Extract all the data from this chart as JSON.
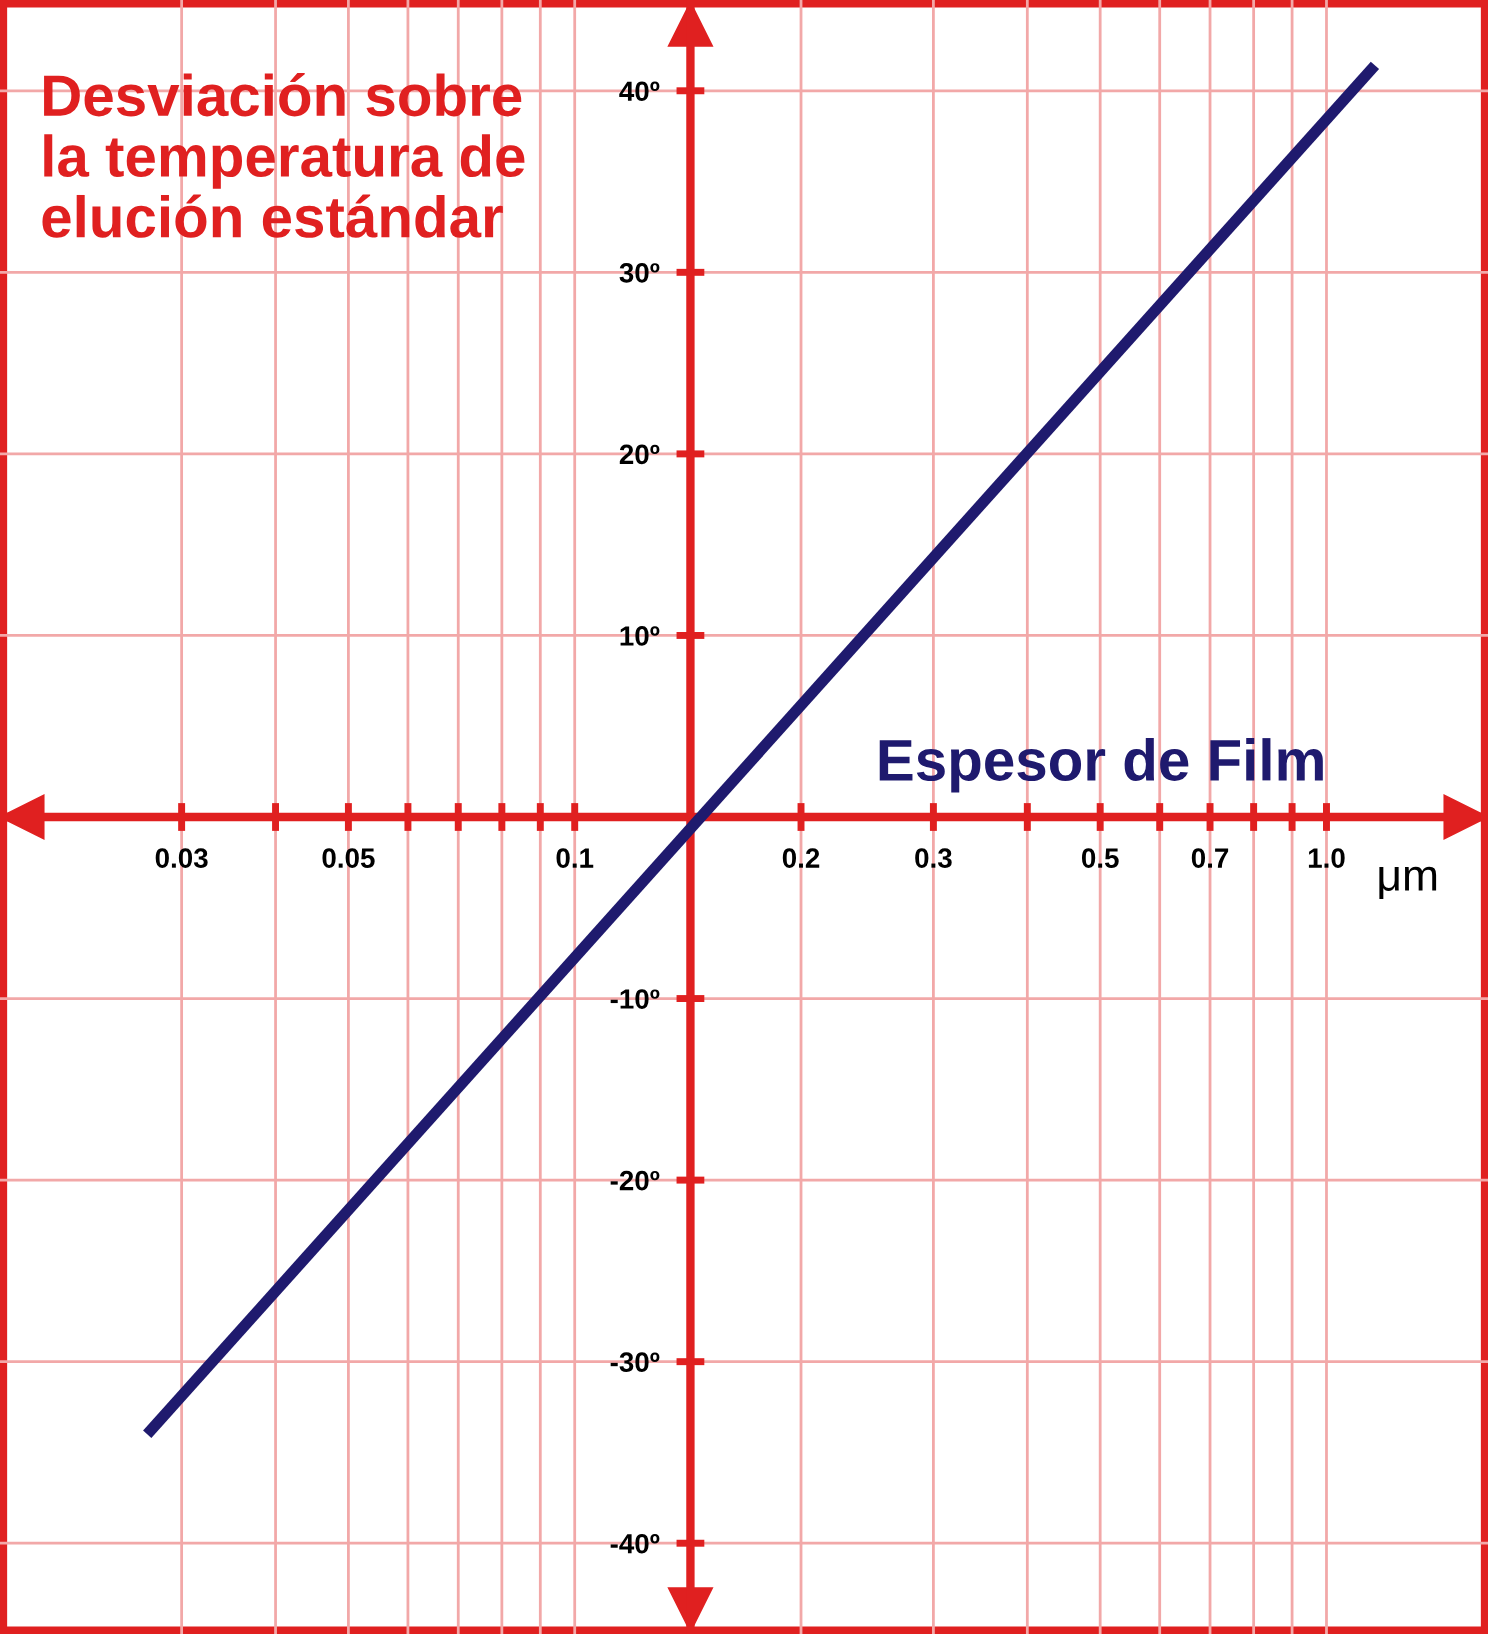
{
  "chart_data": {
    "type": "line",
    "xlabel": "Espesor de Film",
    "ylabel": "Desviación sobre\nla temperatura de\nelución estándar",
    "annotations": [
      "μm"
    ],
    "log": "x",
    "xlim": [
      0.0172,
      1.64
    ],
    "ylim": [
      -45,
      45
    ],
    "xticks": [
      0.03,
      {
        "value": 0.04,
        "label": null
      },
      0.05,
      {
        "value": 0.06,
        "label": null
      },
      {
        "value": 0.07,
        "label": null
      },
      {
        "value": 0.08,
        "label": null
      },
      {
        "value": 0.09,
        "label": null
      },
      0.1,
      0.2,
      0.3,
      {
        "value": 0.4,
        "label": null
      },
      0.5,
      {
        "value": 0.6,
        "label": null
      },
      0.7,
      {
        "value": 0.8,
        "label": null
      },
      {
        "value": 0.9,
        "label": null
      },
      {
        "value": 1,
        "label": "1.0"
      }
    ],
    "yticks": [
      {
        "value": -40,
        "label": "-40º"
      },
      {
        "value": -30,
        "label": "-30º"
      },
      {
        "value": -20,
        "label": "-20º"
      },
      {
        "value": -10,
        "label": "-10º"
      },
      {
        "value": 10,
        "label": "10º"
      },
      {
        "value": 20,
        "label": "20º"
      },
      {
        "value": 30,
        "label": "30º"
      },
      {
        "value": 40,
        "label": "40º"
      }
    ],
    "grid": true,
    "series": [
      {
        "color": "#1f1a6e",
        "x": [
          0.027,
          1.16
        ],
        "values": [
          -34,
          41.4
        ]
      }
    ]
  }
}
